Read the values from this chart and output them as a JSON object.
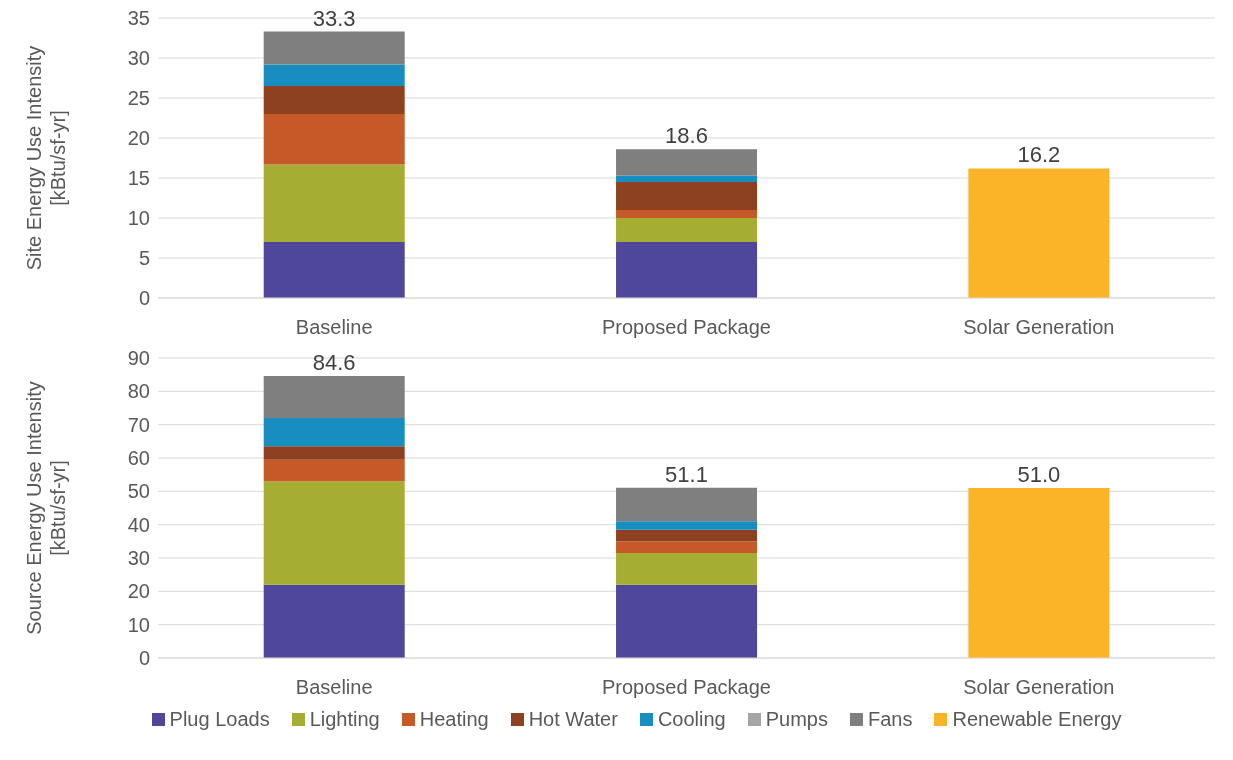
{
  "chart_data": [
    {
      "type": "bar",
      "stacked": true,
      "ylabel": "Site Energy Use Intensity\n[kBtu/sf-yr]",
      "categories": [
        "Baseline",
        "Proposed Package",
        "Solar Generation"
      ],
      "ylim": [
        0,
        35
      ],
      "yticks": [
        0,
        5,
        10,
        15,
        20,
        25,
        30,
        35
      ],
      "grid": "y",
      "legend": false,
      "totals": [
        "33.3",
        "18.6",
        "16.2"
      ],
      "series": [
        {
          "color": "#4f479b",
          "values": [
            7.0,
            7.0,
            null
          ]
        },
        {
          "color": "#a5ad33",
          "values": [
            9.7,
            3.0,
            null
          ]
        },
        {
          "color": "#c55a28",
          "values": [
            6.3,
            1.0,
            null
          ]
        },
        {
          "color": "#8e4120",
          "values": [
            3.5,
            3.5,
            null
          ]
        },
        {
          "color": "#178dc0",
          "values": [
            2.7,
            0.8,
            null
          ]
        },
        {
          "color": "#a5a5a5",
          "values": [
            0,
            0,
            null
          ]
        },
        {
          "color": "#7f7f7f",
          "values": [
            4.1,
            3.3,
            null
          ]
        },
        {
          "color": "#fbb427",
          "values": [
            null,
            null,
            16.2
          ]
        }
      ]
    },
    {
      "type": "bar",
      "stacked": true,
      "ylabel": "Source Energy Use Intensity\n[kBtu/sf-yr]",
      "categories": [
        "Baseline",
        "Proposed Package",
        "Solar Generation"
      ],
      "ylim": [
        0,
        90
      ],
      "yticks": [
        0,
        10,
        20,
        30,
        40,
        50,
        60,
        70,
        80,
        90
      ],
      "grid": "y",
      "legend": "bottom",
      "totals": [
        "84.6",
        "51.1",
        "51.0"
      ],
      "series": [
        {
          "name": "Plug Loads",
          "color": "#4f479b",
          "values": [
            22,
            22,
            null
          ]
        },
        {
          "name": "Lighting",
          "color": "#a5ad33",
          "values": [
            31,
            9.5,
            null
          ]
        },
        {
          "name": "Heating",
          "color": "#c55a28",
          "values": [
            6.5,
            3.5,
            null
          ]
        },
        {
          "name": "Hot Water",
          "color": "#8e4120",
          "values": [
            4,
            3.5,
            null
          ]
        },
        {
          "name": "Cooling",
          "color": "#178dc0",
          "values": [
            8.5,
            2.5,
            null
          ]
        },
        {
          "name": "Pumps",
          "color": "#a5a5a5",
          "values": [
            0,
            0,
            null
          ]
        },
        {
          "name": "Fans",
          "color": "#7f7f7f",
          "values": [
            12.6,
            10.1,
            null
          ]
        },
        {
          "name": "Renewable Energy",
          "color": "#fbb427",
          "values": [
            null,
            null,
            51.0
          ]
        }
      ]
    }
  ]
}
